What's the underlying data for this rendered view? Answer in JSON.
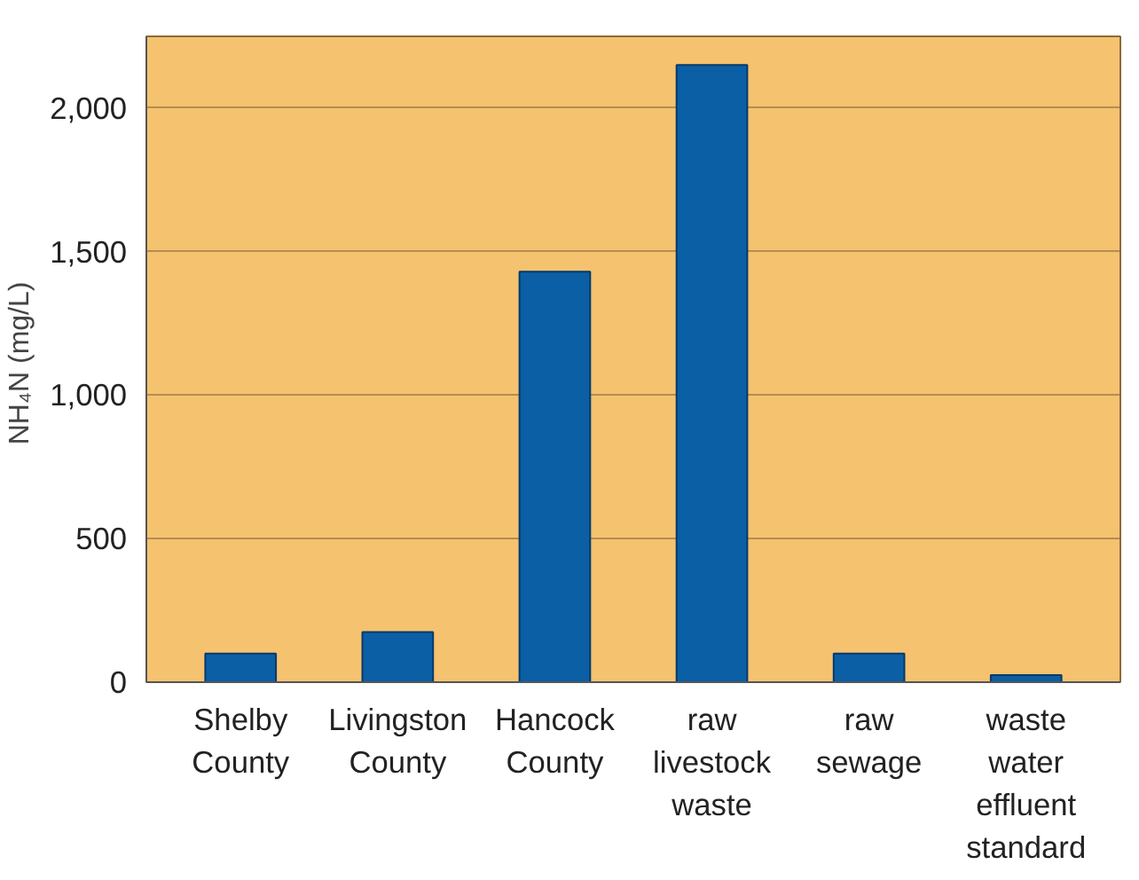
{
  "chart_data": {
    "type": "bar",
    "ylabel": "NH₄N  (mg/L)",
    "categories": [
      "Shelby\nCounty",
      "Livingston\nCounty",
      "Hancock\nCounty",
      "raw\nlivestock\nwaste",
      "raw\nsewage",
      "waste\nwater\neffluent\nstandard"
    ],
    "values": [
      100,
      175,
      1430,
      2150,
      100,
      25
    ],
    "color": "#0b5fa5",
    "ylim": [
      0,
      2250
    ],
    "yticks": [
      0,
      500,
      {
        "value": 1000,
        "label": "1,000"
      },
      {
        "value": 1500,
        "label": "1,500"
      },
      {
        "value": 2000,
        "label": "2,000"
      }
    ],
    "grid": "y"
  }
}
